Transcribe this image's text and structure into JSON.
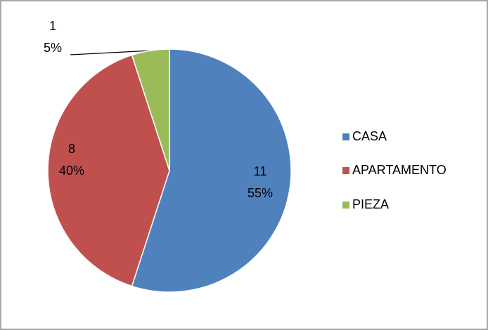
{
  "chart_data": {
    "type": "pie",
    "categories": [
      "CASA",
      "APARTAMENTO",
      "PIEZA"
    ],
    "values": [
      11,
      8,
      1
    ],
    "percents": [
      55,
      40,
      5
    ],
    "percent_labels": [
      "55%",
      "40%",
      "5%"
    ],
    "colors": [
      "#4f81bd",
      "#c0504d",
      "#9bbb59"
    ],
    "legend": "right"
  }
}
